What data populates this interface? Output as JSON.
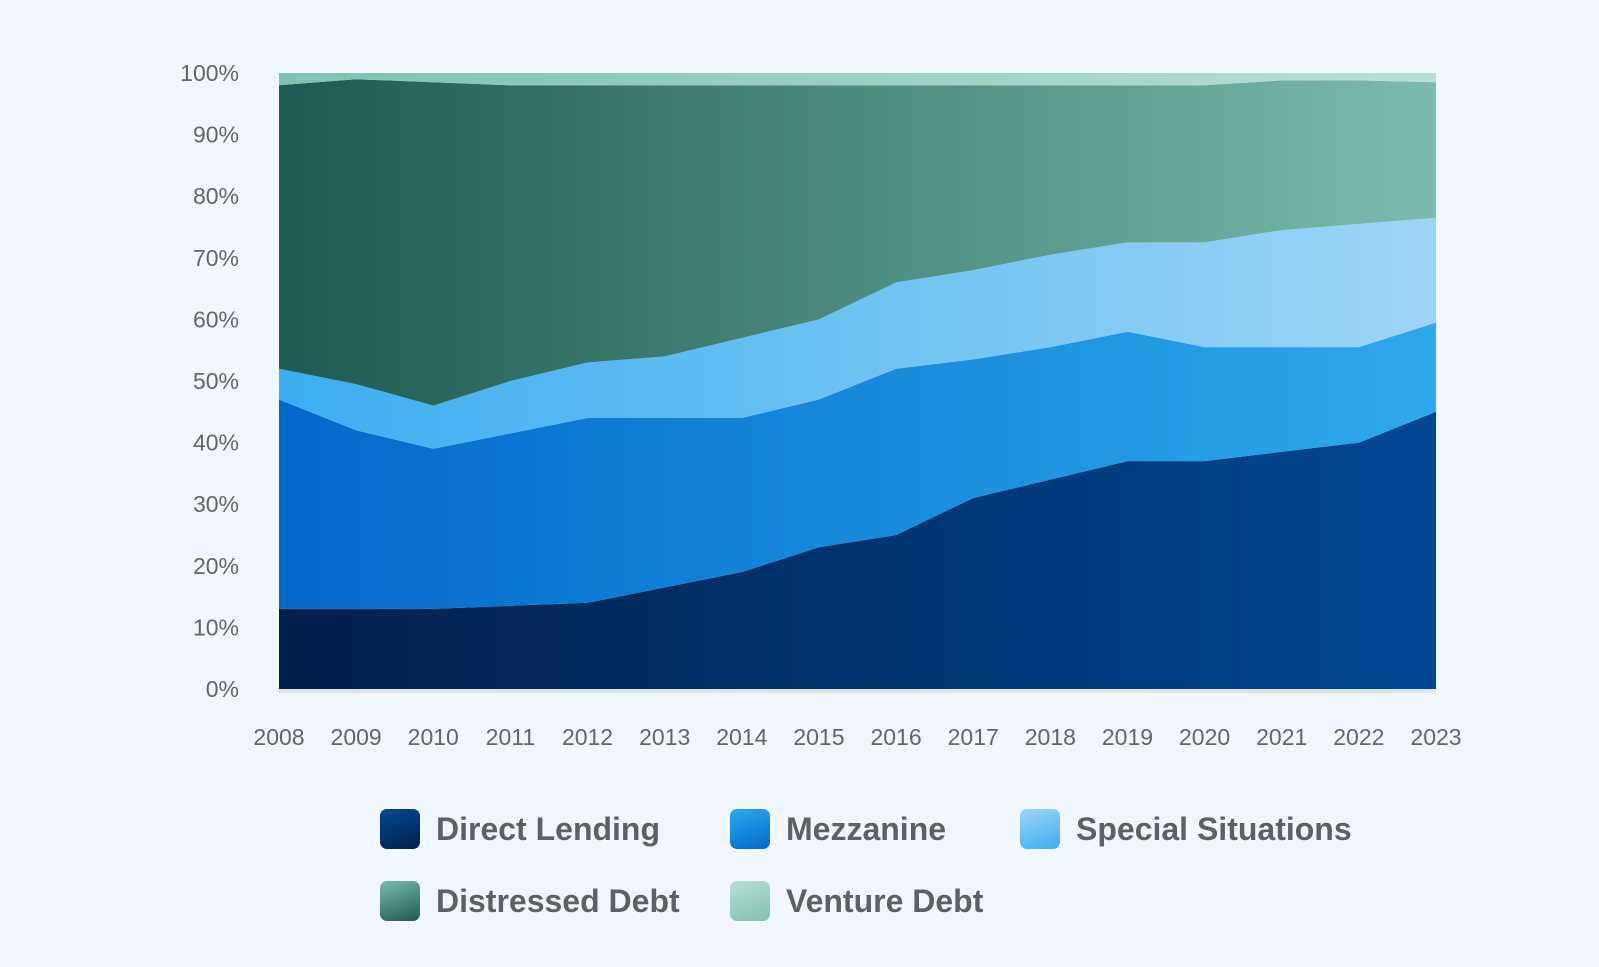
{
  "chart_data": {
    "type": "area",
    "stacked": true,
    "title": "",
    "xlabel": "",
    "ylabel": "",
    "ylim": [
      0,
      100
    ],
    "y_ticks": [
      "0%",
      "10%",
      "20%",
      "30%",
      "40%",
      "50%",
      "60%",
      "70%",
      "80%",
      "90%",
      "100%"
    ],
    "x": [
      "2008",
      "2009",
      "2010",
      "2011",
      "2012",
      "2013",
      "2014",
      "2015",
      "2016",
      "2017",
      "2018",
      "2019",
      "2020",
      "2021",
      "2022",
      "2023"
    ],
    "grid": false,
    "legend_position": "bottom",
    "series": [
      {
        "name": "Direct Lending",
        "color_start": "#01204c",
        "color_end": "#004792",
        "values": [
          13,
          13,
          13,
          13.5,
          14,
          16.5,
          19,
          23,
          25,
          31,
          34,
          37,
          37,
          38.5,
          40,
          45
        ]
      },
      {
        "name": "Mezzanine",
        "color_start": "#0269c9",
        "color_end": "#2ea9eb",
        "values": [
          34,
          29,
          26,
          28,
          30,
          27.5,
          25,
          24,
          27,
          22.5,
          21.5,
          21,
          18.5,
          17,
          15.5,
          14.5
        ]
      },
      {
        "name": "Special Situations",
        "color_start": "#3caef0",
        "color_end": "#9ed5f6",
        "values": [
          5,
          7.5,
          7,
          8.5,
          9,
          10,
          13,
          13,
          14,
          14.5,
          15,
          14.5,
          17,
          19,
          20,
          17
        ]
      },
      {
        "name": "Distressed Debt",
        "color_start": "#1d5a51",
        "color_end": "#7bbcae",
        "values": [
          46,
          49.5,
          52.5,
          48,
          45,
          44,
          41,
          38,
          32,
          30,
          27.5,
          25.5,
          25.5,
          24.3,
          23.3,
          22
        ]
      },
      {
        "name": "Venture Debt",
        "color_start": "#7fc2b2",
        "color_end": "#b9dfd6",
        "values": [
          2,
          1,
          1.5,
          2,
          2,
          2,
          2,
          2,
          2,
          2,
          2,
          2,
          2,
          1.2,
          1.2,
          1.5
        ]
      }
    ]
  }
}
